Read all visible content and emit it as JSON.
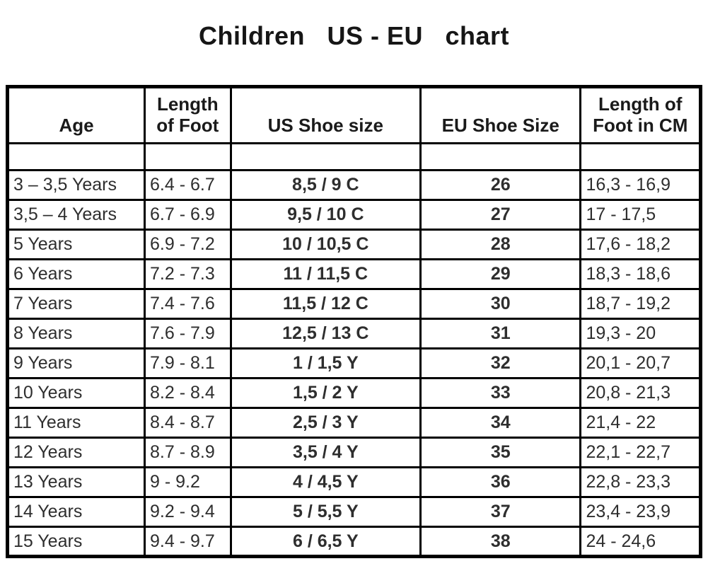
{
  "title": "Children   US - EU   chart",
  "table": {
    "headers": {
      "age": "Age",
      "foot": "Length of Foot",
      "us": "US Shoe size",
      "eu": "EU Shoe Size",
      "cm": "Length of Foot in CM"
    },
    "rows": [
      {
        "age": "3 – 3,5 Years",
        "foot": "6.4 - 6.7",
        "us": "8,5 / 9 C",
        "eu": "26",
        "cm": "16,3 - 16,9"
      },
      {
        "age": "3,5 – 4 Years",
        "foot": "6.7 - 6.9",
        "us": "9,5 / 10 C",
        "eu": "27",
        "cm": "17 - 17,5"
      },
      {
        "age": "5 Years",
        "foot": "6.9 - 7.2",
        "us": "10 / 10,5 C",
        "eu": "28",
        "cm": "17,6 - 18,2"
      },
      {
        "age": "6 Years",
        "foot": "7.2 - 7.3",
        "us": "11 / 11,5 C",
        "eu": "29",
        "cm": "18,3 - 18,6"
      },
      {
        "age": "7 Years",
        "foot": "7.4 - 7.6",
        "us": "11,5 / 12 C",
        "eu": "30",
        "cm": "18,7 - 19,2"
      },
      {
        "age": "8 Years",
        "foot": "7.6 - 7.9",
        "us": "12,5 / 13 C",
        "eu": "31",
        "cm": "19,3 - 20"
      },
      {
        "age": "9 Years",
        "foot": "7.9 - 8.1",
        "us": "1 / 1,5 Y",
        "eu": "32",
        "cm": "20,1 - 20,7"
      },
      {
        "age": "10 Years",
        "foot": "8.2 - 8.4",
        "us": "1,5 / 2 Y",
        "eu": "33",
        "cm": "20,8 - 21,3"
      },
      {
        "age": "11 Years",
        "foot": "8.4 - 8.7",
        "us": "2,5 / 3 Y",
        "eu": "34",
        "cm": "21,4 - 22"
      },
      {
        "age": "12 Years",
        "foot": "8.7 - 8.9",
        "us": "3,5 / 4 Y",
        "eu": "35",
        "cm": "22,1 - 22,7"
      },
      {
        "age": "13 Years",
        "foot": "9 - 9.2",
        "us": "4 / 4,5 Y",
        "eu": "36",
        "cm": "22,8 - 23,3"
      },
      {
        "age": "14 Years",
        "foot": "9.2 - 9.4",
        "us": "5 / 5,5 Y",
        "eu": "37",
        "cm": "23,4 - 23,9"
      },
      {
        "age": "15 Years",
        "foot": "9.4 - 9.7",
        "us": "6 / 6,5 Y",
        "eu": "38",
        "cm": "24 - 24,6"
      }
    ]
  }
}
